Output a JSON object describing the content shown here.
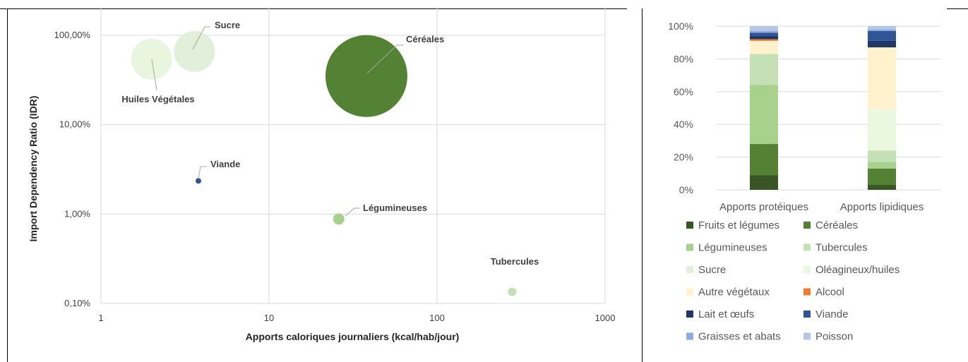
{
  "charts": [
    {
      "type": "scatter",
      "title": "",
      "xlabel": "Apports caloriques journaliers (kcal/hab/jour)",
      "ylabel": "Import Dependency Ratio (IDR)",
      "x_scale": "log",
      "y_scale": "log",
      "xlim": [
        1,
        1000
      ],
      "ylim": [
        0.1,
        100
      ],
      "x_ticks": [
        {
          "value": 1,
          "label": "1"
        },
        {
          "value": 10,
          "label": "10"
        },
        {
          "value": 100,
          "label": "100"
        },
        {
          "value": 1000,
          "label": "1000"
        }
      ],
      "y_ticks": [
        {
          "value": 0.1,
          "label": "0,10%"
        },
        {
          "value": 1,
          "label": "1,00%"
        },
        {
          "value": 10,
          "label": "10,00%"
        },
        {
          "value": 100,
          "label": "100,00%"
        }
      ],
      "grid": true,
      "points": [
        {
          "label": "Céréales",
          "x": 38,
          "y": 35,
          "size": 58,
          "color": "#548235"
        },
        {
          "label": "Sucre",
          "x": 3.6,
          "y": 66,
          "size": 29,
          "color": "#e2efda"
        },
        {
          "label": "Huiles Végétales",
          "x": 2.0,
          "y": 54,
          "size": 29,
          "color": "#e8f6df"
        },
        {
          "label": "Viande",
          "x": 3.8,
          "y": 2.35,
          "size": 4,
          "color": "#2f5597"
        },
        {
          "label": "Légumineuses",
          "x": 26,
          "y": 0.88,
          "size": 8,
          "color": "#a9d18e"
        },
        {
          "label": "Tubercules",
          "x": 280,
          "y": 0.135,
          "size": 6,
          "color": "#c5e0b4"
        }
      ]
    },
    {
      "type": "bar",
      "stacked": true,
      "percent": true,
      "categories": [
        "Apports protéiques",
        "Apports lipidiques"
      ],
      "ylim": [
        0,
        100
      ],
      "y_ticks": [
        "0%",
        "20%",
        "40%",
        "60%",
        "80%",
        "100%"
      ],
      "grid": true,
      "legend_position": "bottom",
      "series": [
        {
          "name": "Fruits et légumes",
          "color": "#375623",
          "values": [
            9,
            3
          ]
        },
        {
          "name": "Céréales",
          "color": "#548235",
          "values": [
            19,
            10
          ]
        },
        {
          "name": "Légumineuses",
          "color": "#a9d18e",
          "values": [
            36,
            4
          ]
        },
        {
          "name": "Tubercules",
          "color": "#c5e0b4",
          "values": [
            19,
            7
          ]
        },
        {
          "name": "Sucre",
          "color": "#e2efda",
          "values": [
            0,
            0
          ]
        },
        {
          "name": "Oléagineux/huiles",
          "color": "#ebf8e0",
          "values": [
            0,
            25
          ]
        },
        {
          "name": "Autre végétaux",
          "color": "#fff2cc",
          "values": [
            8,
            38
          ]
        },
        {
          "name": "Alcool",
          "color": "#ed7d31",
          "values": [
            1,
            0
          ]
        },
        {
          "name": "Lait et œufs",
          "color": "#203864",
          "values": [
            2,
            4
          ]
        },
        {
          "name": "Viande",
          "color": "#2f5597",
          "values": [
            2,
            6
          ]
        },
        {
          "name": "Graisses et abats",
          "color": "#8faadc",
          "values": [
            1,
            1
          ]
        },
        {
          "name": "Poisson",
          "color": "#b4c7e7",
          "values": [
            3,
            2
          ]
        }
      ]
    }
  ]
}
